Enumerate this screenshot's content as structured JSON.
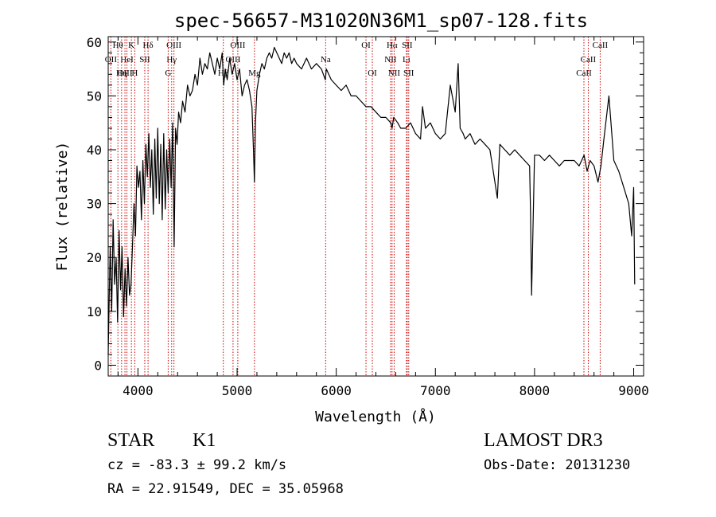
{
  "chart_data": {
    "type": "line",
    "title": "spec-56657-M31020N36M1_sp07-128.fits",
    "xlabel": "Wavelength (Å)",
    "ylabel": "Flux (relative)",
    "xlim": [
      3700,
      9100
    ],
    "ylim": [
      -2,
      61
    ],
    "xticks": [
      4000,
      5000,
      6000,
      7000,
      8000,
      9000
    ],
    "yticks": [
      0,
      10,
      20,
      30,
      40,
      50,
      60
    ],
    "line_color": "#000000",
    "marker_color": "#cc0000",
    "spectrum": {
      "x": [
        3700,
        3710,
        3720,
        3735,
        3750,
        3765,
        3780,
        3795,
        3810,
        3825,
        3840,
        3855,
        3870,
        3885,
        3900,
        3915,
        3930,
        3945,
        3960,
        3975,
        3990,
        4005,
        4020,
        4035,
        4050,
        4065,
        4080,
        4095,
        4110,
        4125,
        4140,
        4155,
        4170,
        4185,
        4200,
        4215,
        4230,
        4245,
        4260,
        4275,
        4290,
        4305,
        4320,
        4335,
        4350,
        4365,
        4380,
        4395,
        4410,
        4430,
        4450,
        4475,
        4500,
        4525,
        4550,
        4575,
        4600,
        4625,
        4650,
        4675,
        4700,
        4725,
        4750,
        4775,
        4800,
        4825,
        4850,
        4865,
        4880,
        4900,
        4925,
        4950,
        4975,
        5000,
        5025,
        5050,
        5075,
        5100,
        5125,
        5150,
        5165,
        5175,
        5185,
        5200,
        5225,
        5250,
        5275,
        5300,
        5325,
        5350,
        5375,
        5400,
        5425,
        5450,
        5475,
        5500,
        5525,
        5550,
        5575,
        5600,
        5650,
        5700,
        5750,
        5800,
        5850,
        5890,
        5900,
        5950,
        6000,
        6050,
        6100,
        6150,
        6200,
        6250,
        6300,
        6350,
        6400,
        6450,
        6500,
        6550,
        6563,
        6580,
        6620,
        6650,
        6700,
        6750,
        6800,
        6850,
        6870,
        6900,
        6950,
        7000,
        7050,
        7100,
        7150,
        7200,
        7230,
        7250,
        7280,
        7300,
        7350,
        7400,
        7450,
        7500,
        7550,
        7600,
        7625,
        7650,
        7700,
        7750,
        7800,
        7850,
        7900,
        7950,
        7960,
        7970,
        8000,
        8050,
        8100,
        8150,
        8200,
        8250,
        8300,
        8350,
        8400,
        8450,
        8500,
        8530,
        8560,
        8600,
        8640,
        8670,
        8700,
        8750,
        8800,
        8850,
        8900,
        8950,
        8980,
        9000,
        9010
      ],
      "y": [
        2,
        12,
        22,
        10,
        27,
        15,
        20,
        8,
        25,
        14,
        22,
        9,
        18,
        11,
        20,
        13,
        15,
        22,
        30,
        24,
        37,
        33,
        36,
        27,
        38,
        30,
        41,
        35,
        43,
        33,
        40,
        28,
        42,
        31,
        44,
        30,
        41,
        27,
        43,
        29,
        40,
        32,
        42,
        33,
        45,
        22,
        44,
        41,
        47,
        45,
        49,
        47,
        52,
        50,
        51,
        54,
        52,
        57,
        54,
        56,
        55,
        58,
        56,
        54,
        57,
        55,
        58,
        52,
        55,
        53,
        57,
        54,
        56,
        53,
        55,
        50,
        52,
        53,
        51,
        48,
        40,
        34,
        45,
        51,
        54,
        56,
        55,
        57,
        58,
        57,
        59,
        58,
        57,
        56,
        58,
        57,
        58,
        56,
        57,
        56,
        55,
        57,
        55,
        56,
        55,
        53,
        55,
        53,
        52,
        51,
        52,
        50,
        50,
        49,
        48,
        48,
        47,
        46,
        46,
        45,
        44,
        46,
        45,
        44,
        44,
        45,
        43,
        42,
        48,
        44,
        45,
        43,
        42,
        43,
        52,
        47,
        56,
        44,
        43,
        42,
        43,
        41,
        42,
        41,
        40,
        34,
        31,
        41,
        40,
        39,
        40,
        39,
        38,
        37,
        28,
        13,
        39,
        39,
        38,
        39,
        38,
        37,
        38,
        38,
        38,
        37,
        39,
        36,
        38,
        37,
        34,
        37,
        42,
        50,
        38,
        36,
        33,
        30,
        24,
        33,
        15
      ]
    },
    "line_markers": [
      {
        "label": "Hθ",
        "x": 3798,
        "row": 0
      },
      {
        "label": "K",
        "x": 3934,
        "row": 0
      },
      {
        "label": "Hδ",
        "x": 4102,
        "row": 0
      },
      {
        "label": "OIII",
        "x": 4363,
        "row": 0
      },
      {
        "label": "OIII",
        "x": 5007,
        "row": 0
      },
      {
        "label": "OI",
        "x": 6300,
        "row": 0
      },
      {
        "label": "Hα",
        "x": 6563,
        "row": 0
      },
      {
        "label": "SII",
        "x": 6716,
        "row": 0
      },
      {
        "label": "CaII",
        "x": 8662,
        "row": 0
      },
      {
        "label": "OII",
        "x": 3727,
        "row": 1
      },
      {
        "label": "HeI",
        "x": 3889,
        "row": 1
      },
      {
        "label": "SII",
        "x": 4069,
        "row": 1
      },
      {
        "label": "Hγ",
        "x": 4340,
        "row": 1
      },
      {
        "label": "OIII",
        "x": 4959,
        "row": 1
      },
      {
        "label": "Na",
        "x": 5893,
        "row": 1
      },
      {
        "label": "NII",
        "x": 6548,
        "row": 1
      },
      {
        "label": "Li",
        "x": 6708,
        "row": 1
      },
      {
        "label": "CaII",
        "x": 8542,
        "row": 1
      },
      {
        "label": "OIII",
        "x": 3869,
        "row": 2
      },
      {
        "label": "Hη",
        "x": 3835,
        "row": 2
      },
      {
        "label": "H",
        "x": 3968,
        "row": 2
      },
      {
        "label": "G",
        "x": 4305,
        "row": 2
      },
      {
        "label": "Hβ",
        "x": 4861,
        "row": 2
      },
      {
        "label": "Mg",
        "x": 5175,
        "row": 2
      },
      {
        "label": "OI",
        "x": 6364,
        "row": 2
      },
      {
        "label": "NII",
        "x": 6584,
        "row": 2
      },
      {
        "label": "SII",
        "x": 6731,
        "row": 2
      },
      {
        "label": "CaII",
        "x": 8498,
        "row": 2
      }
    ]
  },
  "info": {
    "object_class": "STAR",
    "subclass": "K1",
    "survey": "LAMOST DR3",
    "redshift": "cz = -83.3 ± 99.2 km/s",
    "obs_date": "Obs-Date: 20131230",
    "coords": "RA =  22.91549, DEC =  35.05968"
  }
}
